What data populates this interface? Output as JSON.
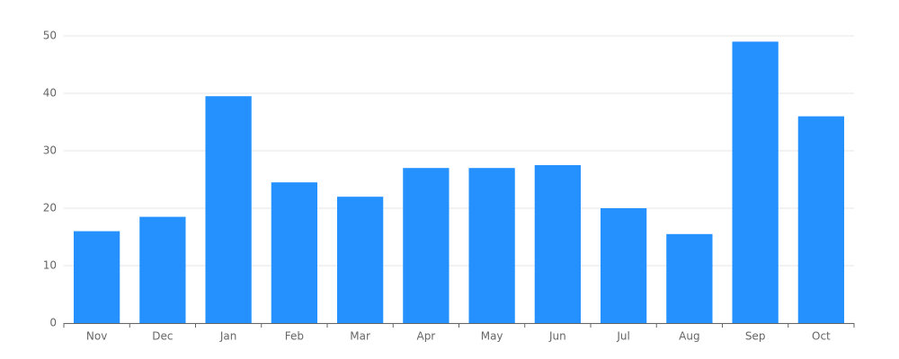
{
  "chart_data": {
    "type": "bar",
    "categories": [
      "Nov",
      "Dec",
      "Jan",
      "Feb",
      "Mar",
      "Apr",
      "May",
      "Jun",
      "Jul",
      "Aug",
      "Sep",
      "Oct"
    ],
    "values": [
      16,
      18.5,
      39.5,
      24.5,
      22,
      27,
      27,
      27.5,
      20,
      15.5,
      49,
      36
    ],
    "color": "#2491ff",
    "ylim": [
      0,
      50
    ],
    "yticks": [
      0,
      10,
      20,
      30,
      40,
      50
    ],
    "grid": true
  }
}
